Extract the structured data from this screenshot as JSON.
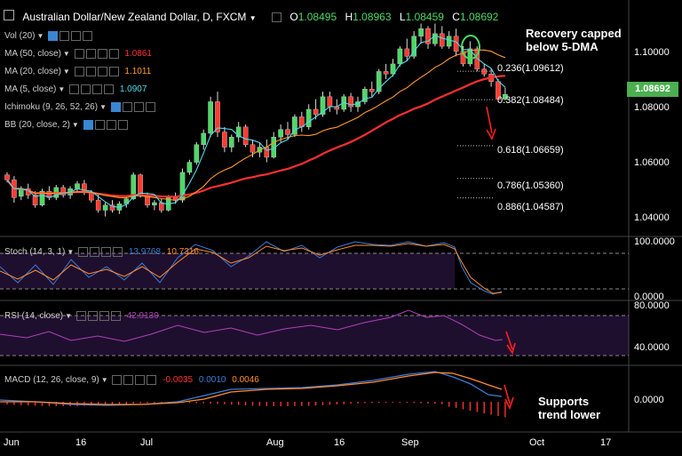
{
  "header": {
    "symbol": "Australian Dollar/New Zealand Dollar, D, FXCM",
    "ohlc": [
      {
        "k": "O",
        "v": "1.08495"
      },
      {
        "k": "H",
        "v": "1.08963"
      },
      {
        "k": "L",
        "v": "1.08459"
      },
      {
        "k": "C",
        "v": "1.08692"
      }
    ]
  },
  "indicators": {
    "vol": {
      "label": "Vol (20)"
    },
    "ma50": {
      "label": "MA (50, close)",
      "value": "1.0861",
      "color": "#ff3030"
    },
    "ma20": {
      "label": "MA (20, close)",
      "value": "1.1011",
      "color": "#ff9a2e"
    },
    "ma5": {
      "label": "MA (5, close)",
      "value": "1.0907",
      "color": "#4fd8e8"
    },
    "ichimoku": {
      "label": "Ichimoku (9, 26, 52, 26)"
    },
    "bb": {
      "label": "BB (20, close, 2)"
    }
  },
  "annotations": {
    "top": "Recovery capped below 5-DMA",
    "bottom": "Supports trend lower"
  },
  "fib_levels": [
    {
      "label": "0.236(1.09612)",
      "price": 1.09612
    },
    {
      "label": "0.382(1.08484)",
      "price": 1.08484
    },
    {
      "label": "0.618(1.06659)",
      "price": 1.06659
    },
    {
      "label": "0.786(1.05360)",
      "price": 1.0536
    },
    {
      "label": "0.886(1.04587)",
      "price": 1.04587
    }
  ],
  "price_axis": {
    "ticks": [
      "1.10000",
      "1.08000",
      "1.06000",
      "1.04000"
    ],
    "last_price": "1.08692"
  },
  "x_axis": {
    "ticks": [
      "Jun",
      "16",
      "Jul",
      "Aug",
      "16",
      "Sep",
      "Oct",
      "17"
    ]
  },
  "stoch": {
    "label": "Stoch (14, 3, 1)",
    "k": "13.9768",
    "d": "10.7316",
    "k_color": "#3b7dd8",
    "d_color": "#ff8c2e",
    "axis": [
      "100.0000",
      "0.0000"
    ]
  },
  "rsi": {
    "label": "RSI (14, close)",
    "value": "42.9130",
    "color": "#b040c0",
    "axis": [
      "80.0000",
      "40.0000"
    ]
  },
  "macd": {
    "label": "MACD (12, 26, close, 9)",
    "hist": "-0.0035",
    "macd": "0.0010",
    "signal": "0.0046",
    "hist_color": "#ff3030",
    "macd_color": "#3b7dd8",
    "signal_color": "#ff8c2e",
    "axis": [
      "0.0000"
    ]
  },
  "chart_data": {
    "type": "candlestick",
    "title": "Australian Dollar/New Zealand Dollar, D, FXCM",
    "ylim": [
      1.032,
      1.118
    ],
    "candles": [
      [
        1.055,
        1.056,
        1.052,
        1.053
      ],
      [
        1.053,
        1.0545,
        1.044,
        1.046
      ],
      [
        1.0465,
        1.0505,
        1.045,
        1.0495
      ],
      [
        1.0495,
        1.0515,
        1.0455,
        1.047
      ],
      [
        1.047,
        1.0485,
        1.042,
        1.043
      ],
      [
        1.043,
        1.0495,
        1.0425,
        1.0485
      ],
      [
        1.0485,
        1.0505,
        1.045,
        1.046
      ],
      [
        1.046,
        1.051,
        1.045,
        1.05
      ],
      [
        1.05,
        1.051,
        1.046,
        1.047
      ],
      [
        1.047,
        1.0505,
        1.0455,
        1.0495
      ],
      [
        1.0495,
        1.0525,
        1.0485,
        1.0515
      ],
      [
        1.0515,
        1.053,
        1.047,
        1.048
      ],
      [
        1.048,
        1.049,
        1.044,
        1.045
      ],
      [
        1.045,
        1.0475,
        1.04,
        1.041
      ],
      [
        1.041,
        1.044,
        1.0385,
        1.043
      ],
      [
        1.043,
        1.045,
        1.04,
        1.041
      ],
      [
        1.041,
        1.0445,
        1.0395,
        1.0435
      ],
      [
        1.0435,
        1.0465,
        1.042,
        1.0455
      ],
      [
        1.0455,
        1.056,
        1.045,
        1.055
      ],
      [
        1.055,
        1.0555,
        1.046,
        1.047
      ],
      [
        1.047,
        1.048,
        1.042,
        1.043
      ],
      [
        1.043,
        1.045,
        1.041,
        1.044
      ],
      [
        1.044,
        1.0455,
        1.04,
        1.041
      ],
      [
        1.041,
        1.047,
        1.0405,
        1.046
      ],
      [
        1.046,
        1.048,
        1.0435,
        1.045
      ],
      [
        1.045,
        1.0575,
        1.044,
        1.056
      ],
      [
        1.056,
        1.061,
        1.055,
        1.06
      ],
      [
        1.06,
        1.068,
        1.059,
        1.067
      ],
      [
        1.067,
        1.073,
        1.065,
        1.0715
      ],
      [
        1.0715,
        1.086,
        1.07,
        1.084
      ],
      [
        1.084,
        1.088,
        1.07,
        1.072
      ],
      [
        1.072,
        1.074,
        1.064,
        1.066
      ],
      [
        1.066,
        1.071,
        1.064,
        1.07
      ],
      [
        1.07,
        1.076,
        1.068,
        1.074
      ],
      [
        1.074,
        1.075,
        1.066,
        1.067
      ],
      [
        1.067,
        1.069,
        1.062,
        1.064
      ],
      [
        1.064,
        1.068,
        1.062,
        1.066
      ],
      [
        1.066,
        1.069,
        1.06,
        1.062
      ],
      [
        1.062,
        1.072,
        1.0615,
        1.07
      ],
      [
        1.07,
        1.075,
        1.068,
        1.073
      ],
      [
        1.073,
        1.076,
        1.069,
        1.071
      ],
      [
        1.071,
        1.079,
        1.07,
        1.078
      ],
      [
        1.078,
        1.08,
        1.072,
        1.074
      ],
      [
        1.074,
        1.083,
        1.073,
        1.081
      ],
      [
        1.081,
        1.085,
        1.077,
        1.079
      ],
      [
        1.079,
        1.088,
        1.078,
        1.086
      ],
      [
        1.086,
        1.088,
        1.08,
        1.082
      ],
      [
        1.082,
        1.085,
        1.079,
        1.081
      ],
      [
        1.081,
        1.087,
        1.08,
        1.086
      ],
      [
        1.086,
        1.0875,
        1.08,
        1.082
      ],
      [
        1.082,
        1.086,
        1.08,
        1.084
      ],
      [
        1.084,
        1.09,
        1.083,
        1.089
      ],
      [
        1.089,
        1.092,
        1.086,
        1.088
      ],
      [
        1.088,
        1.097,
        1.087,
        1.096
      ],
      [
        1.096,
        1.099,
        1.093,
        1.095
      ],
      [
        1.095,
        1.101,
        1.094,
        1.099
      ],
      [
        1.099,
        1.106,
        1.098,
        1.105
      ],
      [
        1.105,
        1.109,
        1.1,
        1.102
      ],
      [
        1.102,
        1.112,
        1.101,
        1.11
      ],
      [
        1.11,
        1.115,
        1.107,
        1.113
      ],
      [
        1.113,
        1.114,
        1.105,
        1.107
      ],
      [
        1.107,
        1.115,
        1.106,
        1.111
      ],
      [
        1.111,
        1.114,
        1.105,
        1.106
      ],
      [
        1.106,
        1.112,
        1.105,
        1.11
      ],
      [
        1.11,
        1.113,
        1.102,
        1.104
      ],
      [
        1.104,
        1.106,
        1.098,
        1.099
      ],
      [
        1.099,
        1.108,
        1.098,
        1.105
      ],
      [
        1.105,
        1.106,
        1.096,
        1.097
      ],
      [
        1.097,
        1.099,
        1.094,
        1.095
      ],
      [
        1.095,
        1.097,
        1.09,
        1.092
      ],
      [
        1.092,
        1.093,
        1.084,
        1.085
      ],
      [
        1.085,
        1.0896,
        1.0846,
        1.0869
      ]
    ],
    "fib_prices": [
      1.09612,
      1.08484,
      1.06659,
      1.0536,
      1.04587
    ]
  }
}
